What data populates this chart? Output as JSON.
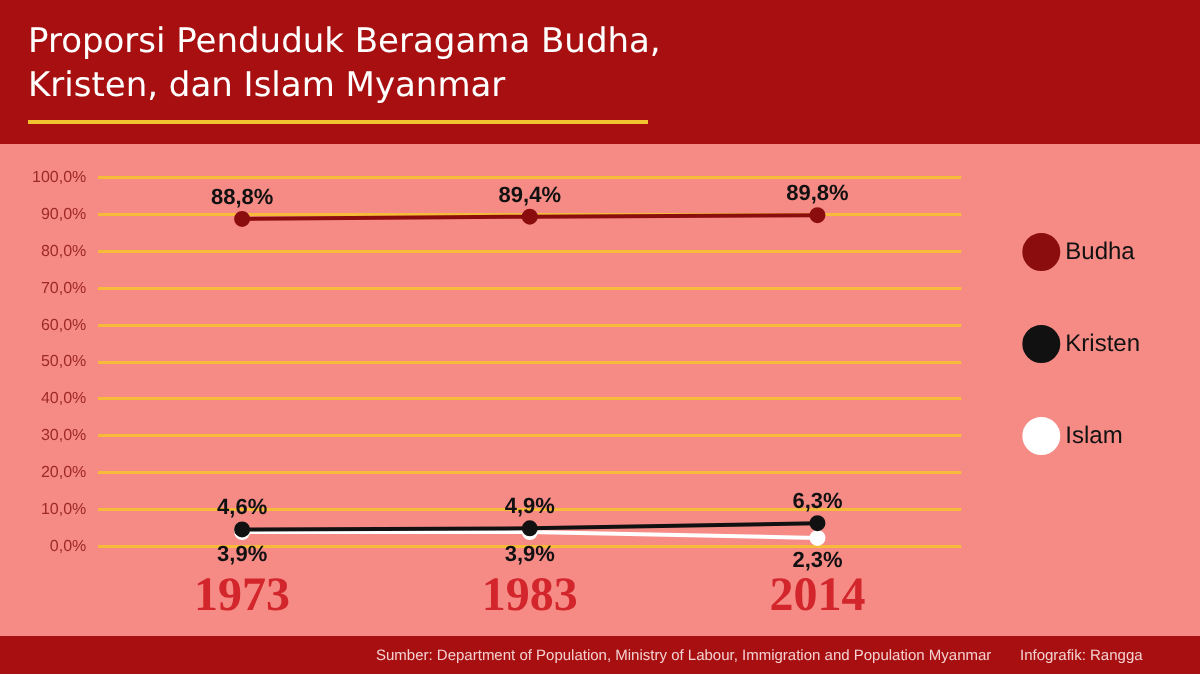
{
  "chart_data": {
    "type": "line",
    "title": "Proporsi Penduduk Beragama Budha, Kristen, dan Islam Myanmar",
    "categories": [
      "1973",
      "1983",
      "2014"
    ],
    "series": [
      {
        "name": "Budha",
        "color": "#8b0d0d",
        "values": [
          88.8,
          89.4,
          89.8
        ],
        "value_labels": [
          "88,8%",
          "89,4%",
          "89,8%"
        ]
      },
      {
        "name": "Kristen",
        "color": "#111111",
        "values": [
          4.6,
          4.9,
          6.3
        ],
        "value_labels": [
          "4,6%",
          "4,9%",
          "6,3%"
        ]
      },
      {
        "name": "Islam",
        "color": "#ffffff",
        "values": [
          3.9,
          3.9,
          2.3
        ],
        "value_labels": [
          "3,9%",
          "3,9%",
          "2,3%"
        ]
      }
    ],
    "ylim": [
      0,
      100
    ],
    "yticks": [
      {
        "value": 0,
        "label": "0,0%"
      },
      {
        "value": 10,
        "label": "10,0%"
      },
      {
        "value": 20,
        "label": "20,0%"
      },
      {
        "value": 30,
        "label": "30,0%"
      },
      {
        "value": 40,
        "label": "40,0%"
      },
      {
        "value": 50,
        "label": "50,0%"
      },
      {
        "value": 60,
        "label": "60,0%"
      },
      {
        "value": 70,
        "label": "70,0%"
      },
      {
        "value": 80,
        "label": "80,0%"
      },
      {
        "value": 90,
        "label": "90,0%"
      },
      {
        "value": 100,
        "label": "100,0%"
      }
    ],
    "grid": "y",
    "legend": "right",
    "marker": "circle",
    "line_style": "solid",
    "annotations": [
      "Sumber: Department of Population, Ministry of Labour, Immigration and Population Myanmar",
      "Infografik: Rangga"
    ]
  }
}
